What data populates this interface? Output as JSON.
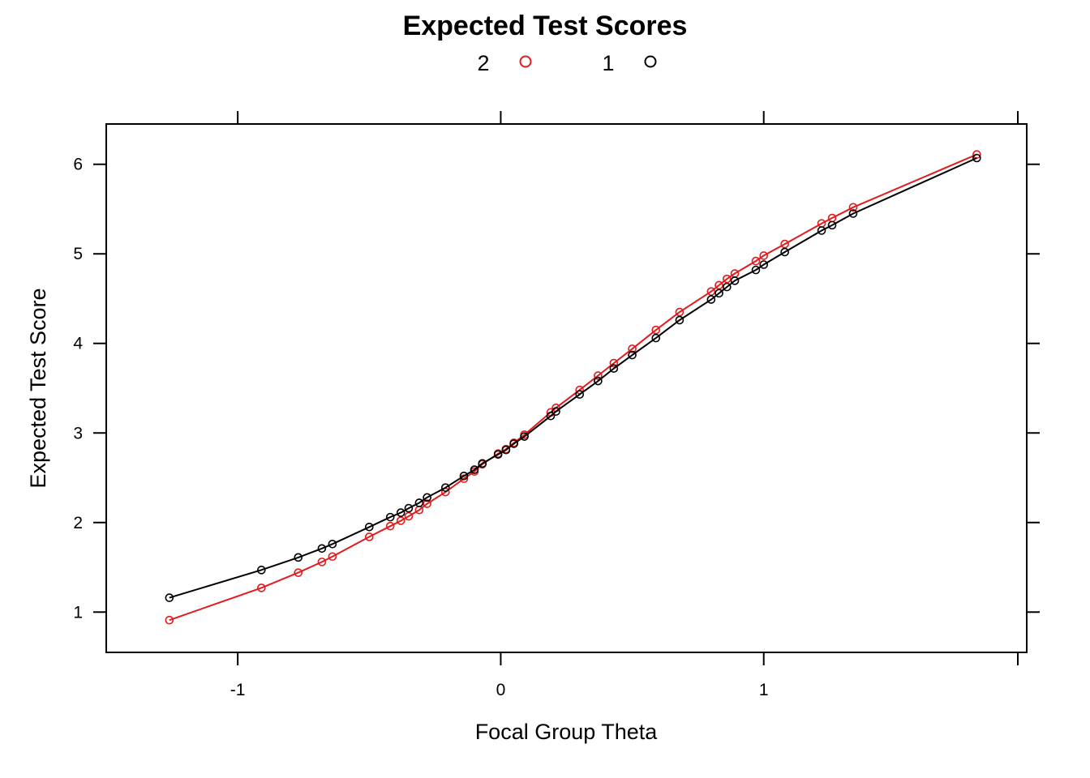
{
  "chart_data": {
    "type": "line",
    "title": "Expected Test Scores",
    "xlabel": "Focal Group Theta",
    "ylabel": "Expected Test Score",
    "xlim": [
      -1.5,
      2.0
    ],
    "ylim": [
      0.55,
      6.45
    ],
    "xticks": [
      -1,
      0,
      1
    ],
    "xtick_labels": [
      "-1",
      "0",
      "1"
    ],
    "yticks": [
      1,
      2,
      3,
      4,
      5,
      6
    ],
    "ytick_labels": [
      "1",
      "2",
      "3",
      "4",
      "5",
      "6"
    ],
    "grid": false,
    "legend_position": "top",
    "series": [
      {
        "name": "2",
        "color": "#e41a1c",
        "x": [
          -1.26,
          -0.91,
          -0.77,
          -0.68,
          -0.64,
          -0.5,
          -0.42,
          -0.38,
          -0.35,
          -0.31,
          -0.28,
          -0.21,
          -0.14,
          -0.1,
          -0.07,
          -0.01,
          0.02,
          0.05,
          0.09,
          0.19,
          0.21,
          0.3,
          0.37,
          0.43,
          0.5,
          0.59,
          0.68,
          0.8,
          0.83,
          0.86,
          0.89,
          0.97,
          1.0,
          1.08,
          1.22,
          1.26,
          1.34,
          1.81
        ],
        "y": [
          0.91,
          1.27,
          1.44,
          1.56,
          1.62,
          1.84,
          1.96,
          2.02,
          2.07,
          2.14,
          2.21,
          2.34,
          2.49,
          2.57,
          2.65,
          2.77,
          2.82,
          2.89,
          2.98,
          3.23,
          3.28,
          3.48,
          3.64,
          3.78,
          3.94,
          4.15,
          4.35,
          4.58,
          4.65,
          4.72,
          4.78,
          4.92,
          4.98,
          5.11,
          5.34,
          5.4,
          5.52,
          6.11
        ]
      },
      {
        "name": "1",
        "color": "#000000",
        "x": [
          -1.26,
          -0.91,
          -0.77,
          -0.68,
          -0.64,
          -0.5,
          -0.42,
          -0.38,
          -0.35,
          -0.31,
          -0.28,
          -0.21,
          -0.14,
          -0.1,
          -0.07,
          -0.01,
          0.02,
          0.05,
          0.09,
          0.19,
          0.21,
          0.3,
          0.37,
          0.43,
          0.5,
          0.59,
          0.68,
          0.8,
          0.83,
          0.86,
          0.89,
          0.97,
          1.0,
          1.08,
          1.22,
          1.26,
          1.34,
          1.81
        ],
        "y": [
          1.16,
          1.47,
          1.61,
          1.71,
          1.76,
          1.95,
          2.06,
          2.11,
          2.16,
          2.22,
          2.28,
          2.39,
          2.52,
          2.59,
          2.66,
          2.76,
          2.81,
          2.88,
          2.96,
          3.19,
          3.24,
          3.43,
          3.58,
          3.72,
          3.87,
          4.06,
          4.26,
          4.49,
          4.56,
          4.63,
          4.7,
          4.82,
          4.88,
          5.02,
          5.26,
          5.32,
          5.45,
          6.07
        ]
      }
    ]
  }
}
